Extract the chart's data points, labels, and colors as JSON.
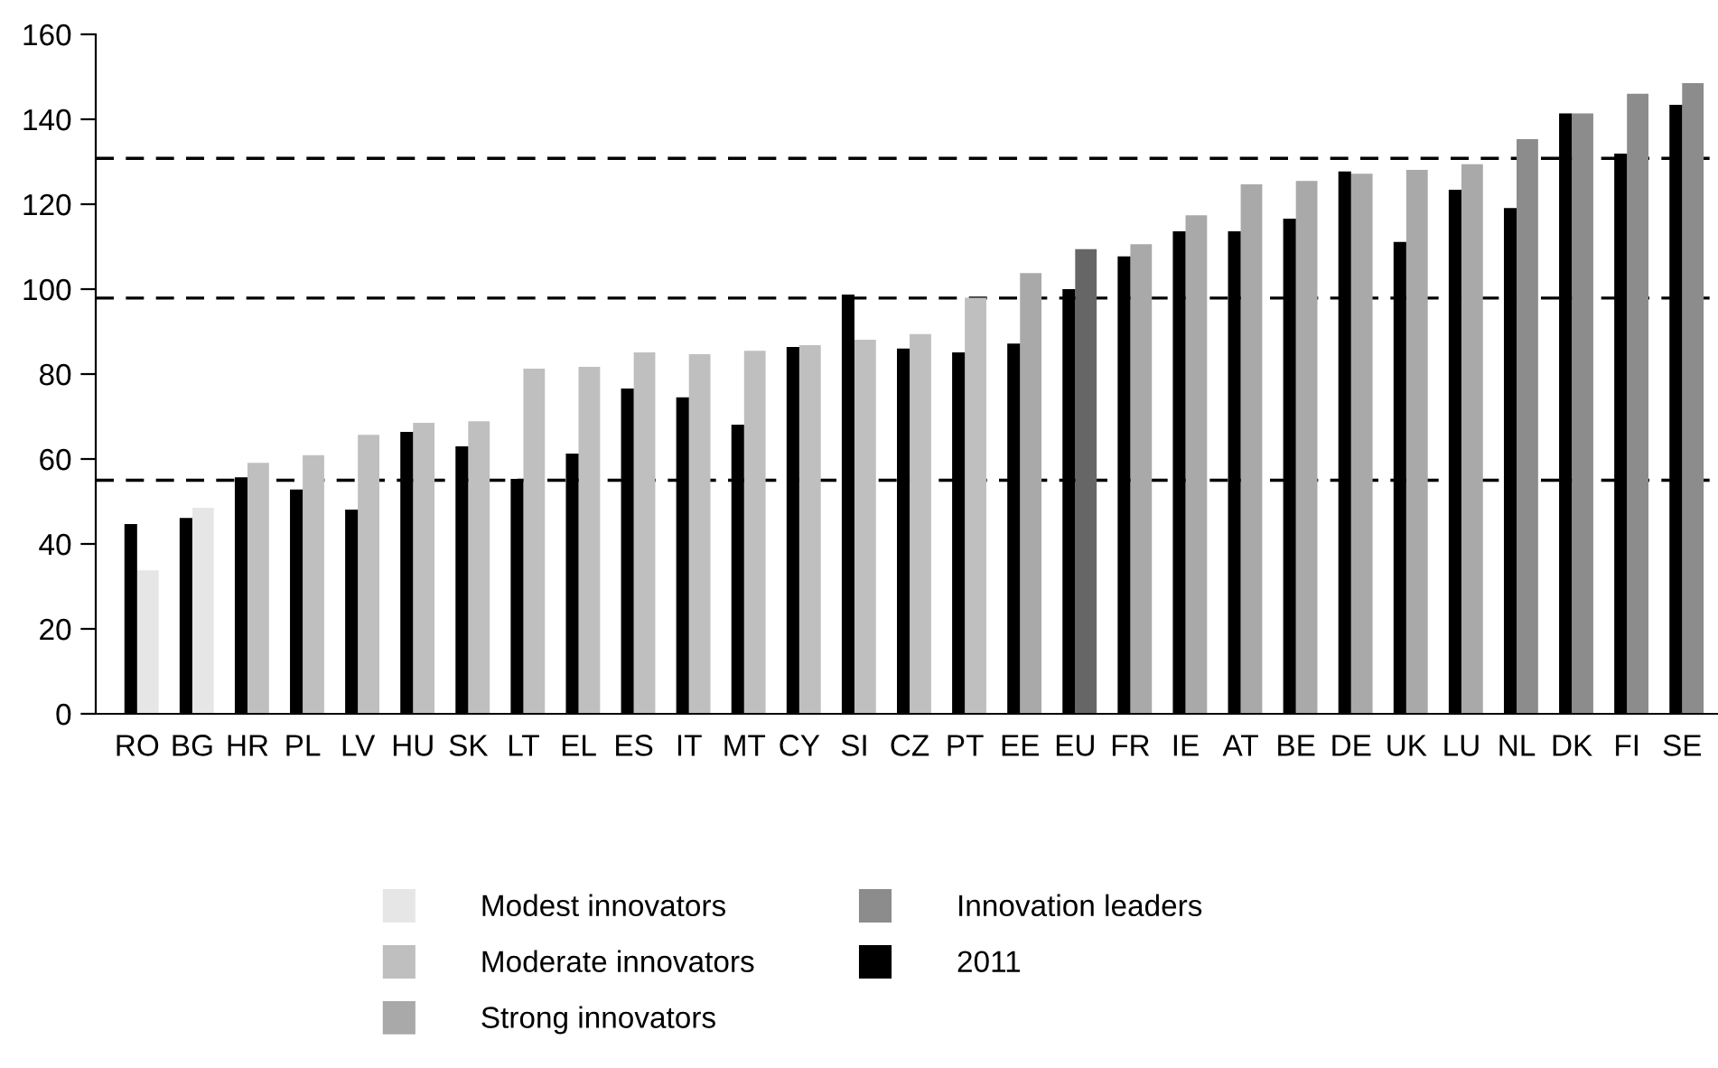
{
  "chart_data": {
    "type": "bar",
    "categories": [
      "RO",
      "BG",
      "HR",
      "PL",
      "LV",
      "HU",
      "SK",
      "LT",
      "EL",
      "ES",
      "IT",
      "MT",
      "CY",
      "SI",
      "CZ",
      "PT",
      "EE",
      "EU",
      "FR",
      "IE",
      "AT",
      "BE",
      "DE",
      "UK",
      "LU",
      "NL",
      "DK",
      "FI",
      "SE"
    ],
    "series": [
      {
        "name": "Modest innovators",
        "color": "#e6e6e6",
        "values": [
          33.8,
          48.5,
          null,
          null,
          null,
          null,
          null,
          null,
          null,
          null,
          null,
          null,
          null,
          null,
          null,
          null,
          null,
          null,
          null,
          null,
          null,
          null,
          null,
          null,
          null,
          null,
          null,
          null,
          null
        ]
      },
      {
        "name": "Moderate innovators",
        "color": "#bfbfbf",
        "values": [
          null,
          null,
          59.1,
          60.9,
          65.7,
          68.5,
          68.9,
          81.3,
          81.7,
          85.1,
          84.7,
          85.5,
          86.8,
          88.1,
          89.4,
          98.0,
          null,
          null,
          null,
          null,
          null,
          null,
          null,
          null,
          null,
          null,
          null,
          null,
          null
        ]
      },
      {
        "name": "Strong innovators",
        "color": "#a9a9a9",
        "values": [
          null,
          null,
          null,
          null,
          null,
          null,
          null,
          null,
          null,
          null,
          null,
          null,
          null,
          null,
          null,
          null,
          103.8,
          null,
          110.6,
          117.4,
          124.7,
          125.5,
          127.2,
          128.1,
          129.4,
          null,
          null,
          null,
          null
        ]
      },
      {
        "name": "Innovation leaders",
        "color": "#8c8c8c",
        "values": [
          null,
          null,
          null,
          null,
          null,
          null,
          null,
          null,
          null,
          null,
          null,
          null,
          null,
          null,
          null,
          null,
          null,
          null,
          null,
          null,
          null,
          null,
          null,
          null,
          null,
          135.3,
          141.4,
          146.0,
          148.5
        ]
      },
      {
        "color": "#666666",
        "values": [
          null,
          null,
          null,
          null,
          null,
          null,
          null,
          null,
          null,
          null,
          null,
          null,
          null,
          null,
          null,
          null,
          null,
          109.4,
          null,
          null,
          null,
          null,
          null,
          null,
          null,
          null,
          null,
          null,
          null
        ]
      },
      {
        "name": "2011",
        "color": "#000000",
        "values": [
          44.7,
          46.1,
          55.7,
          52.8,
          48.1,
          66.4,
          63.0,
          55.3,
          61.3,
          76.6,
          74.5,
          68.1,
          86.4,
          98.7,
          86.0,
          85.1,
          87.2,
          100.0,
          107.7,
          113.6,
          113.6,
          116.6,
          127.7,
          111.1,
          123.4,
          119.1,
          141.4,
          131.9,
          143.4
        ]
      }
    ],
    "ylim": [
      0,
      160
    ],
    "yticks": [
      0,
      20,
      40,
      60,
      80,
      100,
      120,
      140,
      160
    ],
    "ref_lines": [
      {
        "axis": "y",
        "value": 130.8,
        "line_style": "dashed",
        "color": "#000000"
      },
      {
        "axis": "y",
        "value": 97.9,
        "line_style": "dashed",
        "color": "#000000"
      },
      {
        "axis": "y",
        "value": 55.0,
        "line_style": "dashed",
        "color": "#000000"
      }
    ],
    "legend": "bottom",
    "grid": false
  }
}
